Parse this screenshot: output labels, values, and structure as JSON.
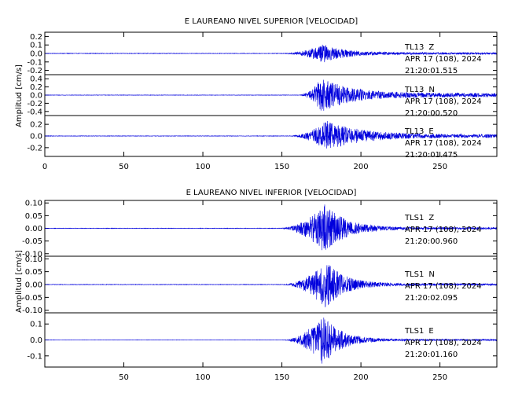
{
  "chart_data": [
    {
      "type": "line",
      "title": "E LAUREANO NIVEL SUPERIOR [VELOCIDAD]",
      "ylabel": "Amplitud [cm/s]",
      "xlabel": "",
      "xlim": [
        0,
        286
      ],
      "xticks": [
        0,
        50,
        100,
        150,
        200,
        250
      ],
      "grid": false,
      "line_color": "#0000dd",
      "panels": [
        {
          "series_name": "",
          "station": "TL13",
          "component": "Z",
          "date": "APR 17 (108), 2024",
          "time": "21:20:01.515",
          "ylim": [
            -0.25,
            0.25
          ],
          "yticks": [
            "0.2",
            "0.1",
            "0.0",
            "-0.1",
            "-0.2"
          ],
          "ytick_values": [
            0.2,
            0.1,
            0.0,
            -0.1,
            -0.2
          ],
          "envelope": {
            "onset": 150,
            "peak": 176,
            "peak_amplitude": 0.11,
            "decay": 30,
            "pre_noise": 0.003,
            "coda": 0.012
          }
        },
        {
          "series_name": "",
          "station": "TL13",
          "component": "N",
          "date": "APR 17 (108), 2024",
          "time": "21:20:00.520",
          "ylim": [
            -0.5,
            0.5
          ],
          "yticks": [
            "0.4",
            "0.2",
            "0.0",
            "-0.2",
            "-0.4"
          ],
          "ytick_values": [
            0.4,
            0.2,
            0.0,
            -0.2,
            -0.4
          ],
          "envelope": {
            "onset": 160,
            "peak": 175,
            "peak_amplitude": 0.42,
            "decay": 40,
            "pre_noise": 0.005,
            "coda": 0.05
          }
        },
        {
          "series_name": "",
          "station": "TL13",
          "component": "E",
          "date": "APR 17 (108), 2024",
          "time": "21:20:01.475",
          "ylim": [
            -0.35,
            0.35
          ],
          "yticks": [
            "0.2",
            "0.0",
            "-0.2"
          ],
          "ytick_values": [
            0.2,
            0.0,
            -0.2
          ],
          "envelope": {
            "onset": 155,
            "peak": 178,
            "peak_amplitude": 0.27,
            "decay": 45,
            "pre_noise": 0.004,
            "coda": 0.03
          }
        }
      ]
    },
    {
      "type": "line",
      "title": "E LAUREANO NIVEL INFERIOR [VELOCIDAD]",
      "ylabel": "Amplitud [cm/s]",
      "xlabel": "",
      "xlim": [
        0,
        286
      ],
      "xticks": [
        50,
        100,
        150,
        200,
        250
      ],
      "grid": false,
      "line_color": "#0000dd",
      "panels": [
        {
          "series_name": "",
          "station": "TLS1",
          "component": "Z",
          "date": "APR 17 (108), 2024",
          "time": "21:20:00.960",
          "ylim": [
            -0.11,
            0.11
          ],
          "yticks": [
            "0.10",
            "0.05",
            "0.00",
            "-0.05",
            "-0.10"
          ],
          "ytick_values": [
            0.1,
            0.05,
            0.0,
            -0.05,
            -0.1
          ],
          "envelope": {
            "onset": 148,
            "peak": 177,
            "peak_amplitude": 0.1,
            "decay": 28,
            "pre_noise": 0.001,
            "coda": 0.004
          }
        },
        {
          "series_name": "",
          "station": "TLS1",
          "component": "N",
          "date": "APR 17 (108), 2024",
          "time": "21:20:02.095",
          "ylim": [
            -0.11,
            0.11
          ],
          "yticks": [
            "0.10",
            "0.05",
            "0.00",
            "-0.05",
            "-0.10"
          ],
          "ytick_values": [
            0.1,
            0.05,
            0.0,
            -0.05,
            -0.1
          ],
          "envelope": {
            "onset": 150,
            "peak": 178,
            "peak_amplitude": 0.095,
            "decay": 25,
            "pre_noise": 0.001,
            "coda": 0.004
          }
        },
        {
          "series_name": "",
          "station": "TLS1",
          "component": "E",
          "date": "APR 17 (108), 2024",
          "time": "21:20:01.160",
          "ylim": [
            -0.17,
            0.17
          ],
          "yticks": [
            "0.1",
            "0.0",
            "-0.1"
          ],
          "ytick_values": [
            0.1,
            0.0,
            -0.1
          ],
          "envelope": {
            "onset": 150,
            "peak": 176,
            "peak_amplitude": 0.16,
            "decay": 24,
            "pre_noise": 0.001,
            "coda": 0.005
          }
        }
      ]
    }
  ]
}
